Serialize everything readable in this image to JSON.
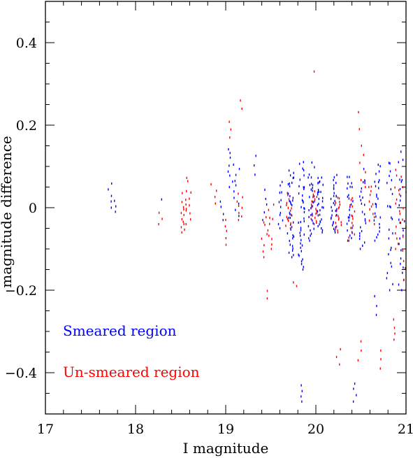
{
  "chart_data": {
    "type": "scatter",
    "xlabel": "I magnitude",
    "ylabel": "magnitude difference",
    "xlim": [
      17,
      21
    ],
    "ylim": [
      -0.5,
      0.5
    ],
    "x_ticks_major": [
      17,
      18,
      19,
      20,
      21
    ],
    "x_tick_labels": [
      "17",
      "18",
      "19",
      "20",
      "21"
    ],
    "y_ticks_major": [
      -0.4,
      -0.2,
      0,
      0.2,
      0.4
    ],
    "y_tick_labels": [
      "−0.4",
      "−0.2",
      "0",
      "0.2",
      "0.4"
    ],
    "x_minor_step": 0.2,
    "y_minor_step": 0.05,
    "grid": false,
    "marker": "short vertical dash",
    "legend_placement": "bottom-left",
    "series": [
      {
        "name": "Smeared region",
        "color": "#0000ff",
        "clusters": [
          {
            "x": 17.72,
            "y_min": 0.0,
            "y_max": 0.06,
            "n": 5
          },
          {
            "x": 17.76,
            "y_min": -0.01,
            "y_max": 0.02,
            "n": 3
          },
          {
            "x": 18.31,
            "y_min": 0.02,
            "y_max": 0.03,
            "n": 1
          },
          {
            "x": 18.95,
            "y_min": -0.03,
            "y_max": 0.02,
            "n": 4
          },
          {
            "x": 19.05,
            "y_min": 0.05,
            "y_max": 0.15,
            "n": 8
          },
          {
            "x": 19.12,
            "y_min": -0.02,
            "y_max": 0.12,
            "n": 10
          },
          {
            "x": 19.35,
            "y_min": 0.08,
            "y_max": 0.13,
            "n": 3
          },
          {
            "x": 19.43,
            "y_min": -0.03,
            "y_max": 0.05,
            "n": 5
          },
          {
            "x": 19.6,
            "y_min": -0.05,
            "y_max": 0.07,
            "n": 12
          },
          {
            "x": 19.72,
            "y_min": -0.12,
            "y_max": 0.11,
            "n": 40
          },
          {
            "x": 19.84,
            "y_min": -0.15,
            "y_max": 0.12,
            "n": 40
          },
          {
            "x": 19.95,
            "y_min": -0.08,
            "y_max": 0.11,
            "n": 30
          },
          {
            "x": 20.05,
            "y_min": -0.06,
            "y_max": 0.09,
            "n": 30
          },
          {
            "x": 20.2,
            "y_min": -0.06,
            "y_max": 0.08,
            "n": 30
          },
          {
            "x": 20.38,
            "y_min": -0.08,
            "y_max": 0.09,
            "n": 25
          },
          {
            "x": 20.52,
            "y_min": -0.1,
            "y_max": 0.1,
            "n": 25
          },
          {
            "x": 20.68,
            "y_min": -0.08,
            "y_max": 0.12,
            "n": 25
          },
          {
            "x": 20.82,
            "y_min": -0.2,
            "y_max": 0.15,
            "n": 25
          },
          {
            "x": 20.95,
            "y_min": -0.2,
            "y_max": 0.14,
            "n": 25
          },
          {
            "x": 19.82,
            "y_min": -0.47,
            "y_max": -0.43,
            "n": 4
          },
          {
            "x": 20.45,
            "y_min": -0.47,
            "y_max": -0.42,
            "n": 4
          },
          {
            "x": 20.65,
            "y_min": -0.26,
            "y_max": -0.21,
            "n": 3
          }
        ]
      },
      {
        "name": "Un-smeared region",
        "color": "#ff0000",
        "clusters": [
          {
            "x": 18.28,
            "y_min": -0.04,
            "y_max": -0.01,
            "n": 3
          },
          {
            "x": 18.53,
            "y_min": -0.06,
            "y_max": 0.04,
            "n": 15
          },
          {
            "x": 18.59,
            "y_min": -0.04,
            "y_max": 0.08,
            "n": 10
          },
          {
            "x": 18.87,
            "y_min": 0.01,
            "y_max": 0.06,
            "n": 4
          },
          {
            "x": 19.03,
            "y_min": -0.09,
            "y_max": -0.02,
            "n": 5
          },
          {
            "x": 19.04,
            "y_min": 0.17,
            "y_max": 0.21,
            "n": 3
          },
          {
            "x": 19.16,
            "y_min": -0.03,
            "y_max": 0.04,
            "n": 8
          },
          {
            "x": 19.17,
            "y_min": 0.24,
            "y_max": 0.26,
            "n": 2
          },
          {
            "x": 19.43,
            "y_min": -0.12,
            "y_max": -0.01,
            "n": 8
          },
          {
            "x": 19.5,
            "y_min": -0.1,
            "y_max": 0.01,
            "n": 10
          },
          {
            "x": 19.45,
            "y_min": -0.22,
            "y_max": -0.2,
            "n": 2
          },
          {
            "x": 19.7,
            "y_min": -0.05,
            "y_max": 0.04,
            "n": 15
          },
          {
            "x": 19.78,
            "y_min": -0.19,
            "y_max": -0.18,
            "n": 2
          },
          {
            "x": 19.98,
            "y_min": -0.04,
            "y_max": 0.04,
            "n": 20
          },
          {
            "x": 19.96,
            "y_min": 0.33,
            "y_max": 0.34,
            "n": 1
          },
          {
            "x": 20.25,
            "y_min": -0.06,
            "y_max": 0.03,
            "n": 20
          },
          {
            "x": 20.25,
            "y_min": -0.38,
            "y_max": -0.34,
            "n": 3
          },
          {
            "x": 20.4,
            "y_min": -0.08,
            "y_max": 0.03,
            "n": 15
          },
          {
            "x": 20.48,
            "y_min": -0.37,
            "y_max": -0.32,
            "n": 3
          },
          {
            "x": 20.5,
            "y_min": 0.15,
            "y_max": 0.24,
            "n": 3
          },
          {
            "x": 20.52,
            "y_min": 0.05,
            "y_max": 0.13,
            "n": 5
          },
          {
            "x": 20.62,
            "y_min": -0.04,
            "y_max": 0.06,
            "n": 12
          },
          {
            "x": 20.75,
            "y_min": -0.39,
            "y_max": -0.34,
            "n": 3
          },
          {
            "x": 20.86,
            "y_min": -0.32,
            "y_max": -0.27,
            "n": 4
          },
          {
            "x": 20.9,
            "y_min": -0.1,
            "y_max": 0.1,
            "n": 15
          },
          {
            "x": 20.97,
            "y_min": -0.2,
            "y_max": 0.1,
            "n": 12
          }
        ]
      }
    ]
  }
}
